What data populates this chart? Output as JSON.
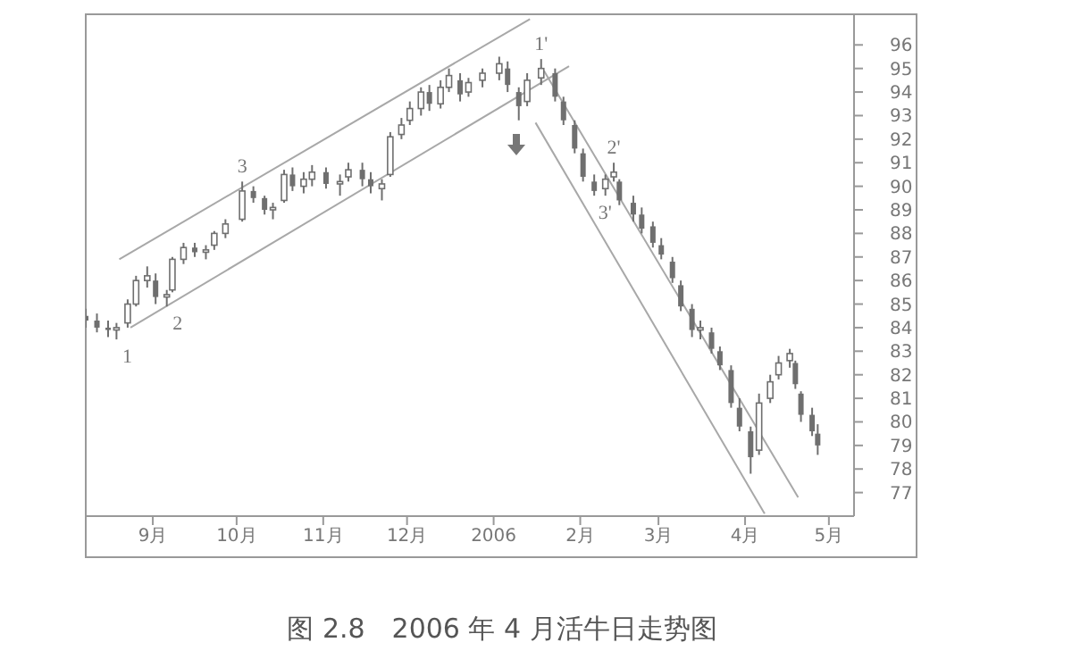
{
  "chart_data": {
    "type": "candlestick",
    "title": "图 2.8　2006 年 4 月活牛日走势图",
    "color": "#6f6f6f",
    "x": [
      "2005-08-08",
      "2005-08-12",
      "2005-08-16",
      "2005-08-19",
      "2005-08-23",
      "2005-08-26",
      "2005-08-30",
      "2005-09-02",
      "2005-09-06",
      "2005-09-08",
      "2005-09-12",
      "2005-09-16",
      "2005-09-20",
      "2005-09-23",
      "2005-09-27",
      "2005-10-03",
      "2005-10-07",
      "2005-10-11",
      "2005-10-14",
      "2005-10-18",
      "2005-10-21",
      "2005-10-25",
      "2005-10-28",
      "2005-11-02",
      "2005-11-07",
      "2005-11-10",
      "2005-11-15",
      "2005-11-18",
      "2005-11-22",
      "2005-11-25",
      "2005-11-29",
      "2005-12-02",
      "2005-12-06",
      "2005-12-09",
      "2005-12-13",
      "2005-12-16",
      "2005-12-20",
      "2005-12-23",
      "2005-12-28",
      "2006-01-03",
      "2006-01-06",
      "2006-01-10",
      "2006-01-13",
      "2006-01-18",
      "2006-01-23",
      "2006-01-26",
      "2006-01-30",
      "2006-02-02",
      "2006-02-06",
      "2006-02-10",
      "2006-02-13",
      "2006-02-15",
      "2006-02-20",
      "2006-02-23",
      "2006-02-27",
      "2006-03-02",
      "2006-03-06",
      "2006-03-09",
      "2006-03-13",
      "2006-03-16",
      "2006-03-20",
      "2006-03-23",
      "2006-03-27",
      "2006-03-30",
      "2006-04-03",
      "2006-04-06",
      "2006-04-10",
      "2006-04-13",
      "2006-04-17",
      "2006-04-19",
      "2006-04-21",
      "2006-04-25",
      "2006-04-27"
    ],
    "ohlc": [
      [
        84.5,
        84.8,
        84.0,
        84.3
      ],
      [
        84.3,
        84.6,
        83.8,
        84.0
      ],
      [
        84.0,
        84.3,
        83.6,
        83.9
      ],
      [
        83.9,
        84.2,
        83.5,
        84.0
      ],
      [
        84.2,
        85.2,
        84.0,
        85.0
      ],
      [
        85.0,
        86.2,
        84.9,
        86.0
      ],
      [
        86.0,
        86.6,
        85.7,
        86.2
      ],
      [
        86.0,
        86.3,
        85.0,
        85.3
      ],
      [
        85.3,
        85.6,
        84.9,
        85.4
      ],
      [
        85.6,
        87.0,
        85.5,
        86.9
      ],
      [
        86.9,
        87.6,
        86.7,
        87.4
      ],
      [
        87.4,
        87.6,
        87.0,
        87.2
      ],
      [
        87.2,
        87.5,
        86.9,
        87.3
      ],
      [
        87.5,
        88.1,
        87.3,
        88.0
      ],
      [
        88.0,
        88.6,
        87.8,
        88.4
      ],
      [
        88.6,
        90.2,
        88.5,
        89.8
      ],
      [
        89.8,
        90.0,
        89.3,
        89.5
      ],
      [
        89.5,
        89.6,
        88.8,
        89.0
      ],
      [
        89.0,
        89.3,
        88.6,
        89.1
      ],
      [
        89.4,
        90.7,
        89.3,
        90.5
      ],
      [
        90.5,
        90.8,
        89.8,
        90.0
      ],
      [
        90.0,
        90.6,
        89.7,
        90.3
      ],
      [
        90.3,
        90.9,
        90.0,
        90.6
      ],
      [
        90.6,
        90.8,
        89.9,
        90.1
      ],
      [
        90.1,
        90.5,
        89.6,
        90.2
      ],
      [
        90.4,
        91.0,
        90.2,
        90.7
      ],
      [
        90.7,
        91.0,
        90.0,
        90.3
      ],
      [
        90.3,
        90.6,
        89.7,
        90.0
      ],
      [
        89.9,
        90.3,
        89.4,
        90.1
      ],
      [
        90.5,
        92.3,
        90.4,
        92.1
      ],
      [
        92.2,
        92.9,
        92.0,
        92.6
      ],
      [
        92.8,
        93.6,
        92.6,
        93.3
      ],
      [
        93.3,
        94.2,
        93.0,
        94.0
      ],
      [
        94.0,
        94.3,
        93.2,
        93.5
      ],
      [
        93.5,
        94.5,
        93.3,
        94.2
      ],
      [
        94.2,
        95.0,
        94.0,
        94.7
      ],
      [
        94.5,
        94.8,
        93.6,
        93.9
      ],
      [
        94.0,
        94.6,
        93.8,
        94.4
      ],
      [
        94.5,
        95.0,
        94.2,
        94.8
      ],
      [
        94.8,
        95.5,
        94.5,
        95.2
      ],
      [
        95.0,
        95.3,
        94.0,
        94.3
      ],
      [
        94.0,
        94.2,
        92.8,
        93.4
      ],
      [
        93.6,
        94.8,
        93.4,
        94.5
      ],
      [
        94.6,
        95.4,
        94.3,
        95.0
      ],
      [
        94.8,
        95.0,
        93.6,
        93.8
      ],
      [
        93.6,
        93.8,
        92.6,
        92.8
      ],
      [
        92.6,
        92.8,
        91.4,
        91.6
      ],
      [
        91.4,
        91.6,
        90.2,
        90.4
      ],
      [
        90.2,
        90.5,
        89.6,
        89.8
      ],
      [
        89.9,
        90.5,
        89.6,
        90.3
      ],
      [
        90.4,
        91.0,
        90.2,
        90.6
      ],
      [
        90.2,
        90.3,
        89.2,
        89.4
      ],
      [
        89.3,
        89.6,
        88.5,
        88.8
      ],
      [
        88.8,
        89.1,
        88.0,
        88.2
      ],
      [
        88.3,
        88.5,
        87.4,
        87.6
      ],
      [
        87.5,
        87.8,
        86.9,
        87.1
      ],
      [
        86.8,
        87.0,
        85.9,
        86.1
      ],
      [
        85.8,
        86.0,
        84.7,
        84.9
      ],
      [
        84.8,
        85.0,
        83.6,
        83.9
      ],
      [
        83.9,
        84.3,
        83.5,
        84.0
      ],
      [
        83.8,
        84.0,
        82.9,
        83.1
      ],
      [
        83.0,
        83.2,
        82.2,
        82.4
      ],
      [
        82.2,
        82.4,
        80.6,
        80.8
      ],
      [
        80.6,
        81.0,
        79.6,
        79.8
      ],
      [
        79.6,
        79.8,
        77.8,
        78.5
      ],
      [
        78.8,
        81.2,
        78.6,
        80.8
      ],
      [
        81.0,
        82.0,
        80.8,
        81.7
      ],
      [
        82.0,
        82.8,
        81.8,
        82.5
      ],
      [
        82.6,
        83.1,
        82.3,
        82.9
      ],
      [
        82.5,
        82.6,
        81.4,
        81.6
      ],
      [
        81.2,
        81.3,
        80.0,
        80.3
      ],
      [
        80.3,
        80.6,
        79.4,
        79.6
      ],
      [
        79.5,
        79.9,
        78.6,
        79.0
      ]
    ],
    "series": [
      {
        "type": "line",
        "color": "#a8a8a8",
        "x": [
          "2005-08-20",
          "2006-01-14"
        ],
        "values": [
          86.9,
          97.1
        ]
      },
      {
        "type": "line",
        "color": "#a8a8a8",
        "x": [
          "2005-08-24",
          "2006-01-28"
        ],
        "values": [
          84.0,
          95.1
        ]
      },
      {
        "type": "line",
        "color": "#a8a8a8",
        "x": [
          "2006-01-19",
          "2006-04-20"
        ],
        "values": [
          94.9,
          76.8
        ]
      },
      {
        "type": "line",
        "color": "#a8a8a8",
        "x": [
          "2006-01-16",
          "2006-04-08"
        ],
        "values": [
          92.7,
          76.1
        ]
      }
    ],
    "xlim": [
      "2005-08-08",
      "2006-05-10"
    ],
    "xticks": [
      {
        "value": "2005-09-01",
        "label": "9月"
      },
      {
        "value": "2005-10-01",
        "label": "10月"
      },
      {
        "value": "2005-11-01",
        "label": "11月"
      },
      {
        "value": "2005-12-01",
        "label": "12月"
      },
      {
        "value": "2006-01-01",
        "label": "2006"
      },
      {
        "value": "2006-02-01",
        "label": "2月"
      },
      {
        "value": "2006-03-01",
        "label": "3月"
      },
      {
        "value": "2006-04-01",
        "label": "4月"
      },
      {
        "value": "2006-05-01",
        "label": "5月"
      }
    ],
    "ylim": [
      76,
      97.3
    ],
    "yticks": [
      77,
      78,
      79,
      80,
      81,
      82,
      83,
      84,
      85,
      86,
      87,
      88,
      89,
      90,
      91,
      92,
      93,
      94,
      95,
      96
    ],
    "annotations": [
      {
        "text": "1",
        "x": "2005-08-19",
        "y": 83.5
      },
      {
        "text": "2",
        "x": "2005-09-06",
        "y": 84.9
      },
      {
        "text": "3",
        "x": "2005-10-03",
        "y": 90.2
      },
      {
        "text": "1'",
        "x": "2006-01-18",
        "y": 95.4
      },
      {
        "text": "2'",
        "x": "2006-02-13",
        "y": 91.0
      },
      {
        "text": "3'",
        "x": "2006-02-06",
        "y": 89.6
      }
    ]
  }
}
